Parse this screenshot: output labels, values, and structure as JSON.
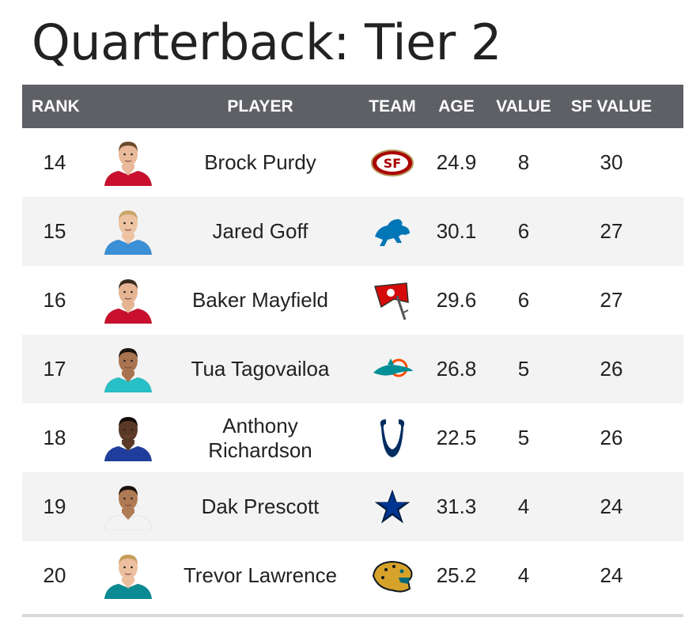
{
  "title": "Quarterback: Tier 2",
  "columns": {
    "rank": "RANK",
    "player": "PLAYER",
    "team": "TEAM",
    "age": "AGE",
    "value": "VALUE",
    "sf_value": "SF VALUE"
  },
  "rows": [
    {
      "rank": "14",
      "player": "Brock Purdy",
      "team_icon": "49ers-logo-icon",
      "age": "24.9",
      "value": "8",
      "sf_value": "30",
      "jersey": "#c8102e",
      "skin": "#e8b99a",
      "hair": "#6b4a2b"
    },
    {
      "rank": "15",
      "player": "Jared Goff",
      "team_icon": "lions-logo-icon",
      "age": "30.1",
      "value": "6",
      "sf_value": "27",
      "jersey": "#3a8fd6",
      "skin": "#eec3a3",
      "hair": "#c9a56a"
    },
    {
      "rank": "16",
      "player": "Baker Mayfield",
      "team_icon": "buccaneers-logo-icon",
      "age": "29.6",
      "value": "6",
      "sf_value": "27",
      "jersey": "#c8102e",
      "skin": "#e5b493",
      "hair": "#3a2a1e"
    },
    {
      "rank": "17",
      "player": "Tua Tagovailoa",
      "team_icon": "dolphins-logo-icon",
      "age": "26.8",
      "value": "5",
      "sf_value": "26",
      "jersey": "#27c0c7",
      "skin": "#a8744f",
      "hair": "#1b1410"
    },
    {
      "rank": "18",
      "player": "Anthony Richardson",
      "team_icon": "colts-logo-icon",
      "age": "22.5",
      "value": "5",
      "sf_value": "26",
      "jersey": "#1f3d9c",
      "skin": "#5a3a26",
      "hair": "#120c08"
    },
    {
      "rank": "19",
      "player": "Dak Prescott",
      "team_icon": "cowboys-logo-icon",
      "age": "31.3",
      "value": "4",
      "sf_value": "24",
      "jersey": "#f4f4f4",
      "skin": "#b07a55",
      "hair": "#1a120c"
    },
    {
      "rank": "20",
      "player": "Trevor Lawrence",
      "team_icon": "jaguars-logo-icon",
      "age": "25.2",
      "value": "4",
      "sf_value": "24",
      "jersey": "#0b8a93",
      "skin": "#ecbf9e",
      "hair": "#c89d5a"
    }
  ]
}
